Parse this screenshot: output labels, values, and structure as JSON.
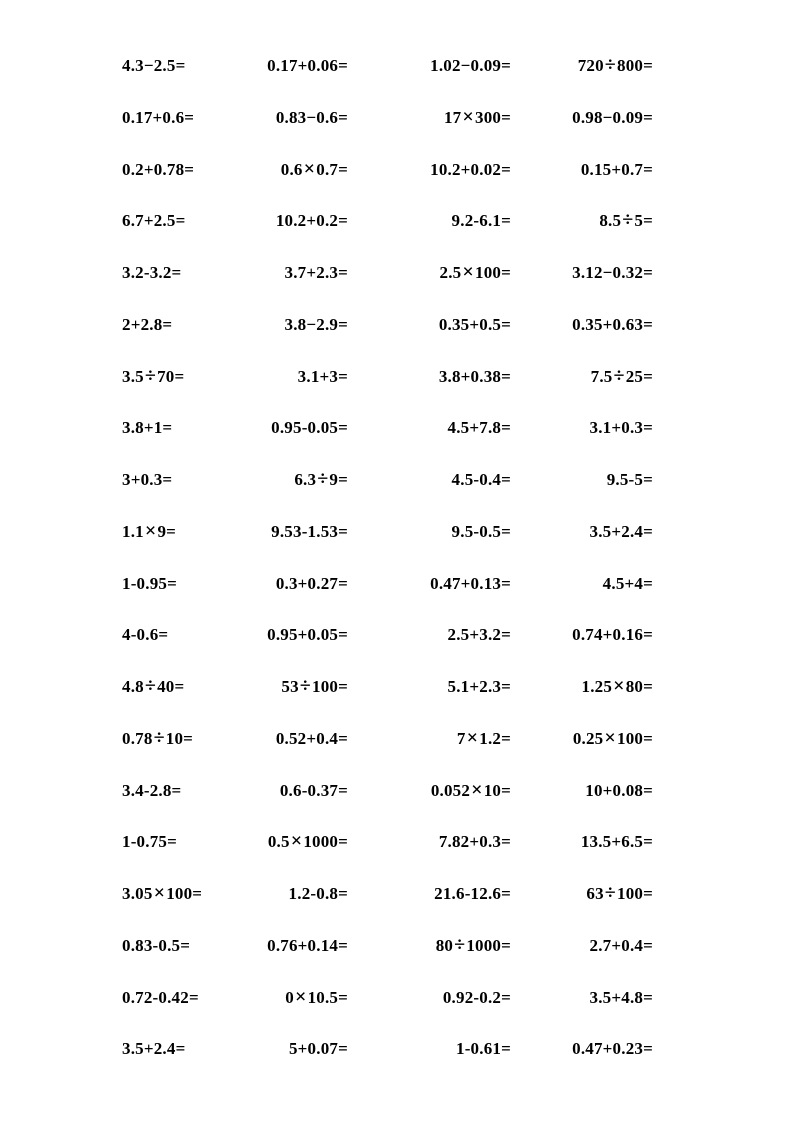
{
  "page": {
    "type": "math-worksheet",
    "background_color": "#ffffff",
    "text_color": "#000000",
    "columns": 4,
    "row_count": 20
  },
  "worksheet": {
    "rows": [
      [
        "4.3−2.5=",
        "0.17+0.06=",
        "1.02−0.09=",
        "720÷800="
      ],
      [
        "0.17+0.6=",
        "0.83−0.6=",
        "17×300=",
        "0.98−0.09="
      ],
      [
        "0.2+0.78=",
        "0.6×0.7=",
        "10.2+0.02=",
        "0.15+0.7="
      ],
      [
        "6.7+2.5=",
        "10.2+0.2=",
        "9.2-6.1=",
        "8.5÷5="
      ],
      [
        "3.2-3.2=",
        "3.7+2.3=",
        "2.5×100=",
        "3.12−0.32="
      ],
      [
        "2+2.8=",
        "3.8−2.9=",
        "0.35+0.5=",
        "0.35+0.63="
      ],
      [
        "3.5÷70=",
        "3.1+3=",
        "3.8+0.38=",
        "7.5÷25="
      ],
      [
        "3.8+1=",
        "0.95-0.05=",
        "4.5+7.8=",
        "3.1+0.3="
      ],
      [
        "3+0.3=",
        "6.3÷9=",
        "4.5-0.4=",
        "9.5-5="
      ],
      [
        "1.1×9=",
        "9.53-1.53=",
        "9.5-0.5=",
        "3.5+2.4="
      ],
      [
        "1-0.95=",
        "0.3+0.27=",
        "0.47+0.13=",
        "4.5+4="
      ],
      [
        "4-0.6=",
        "0.95+0.05=",
        "2.5+3.2=",
        "0.74+0.16="
      ],
      [
        "4.8÷40=",
        "53÷100=",
        "5.1+2.3=",
        "1.25×80="
      ],
      [
        "0.78÷10=",
        "0.52+0.4=",
        "7×1.2=",
        "0.25×100="
      ],
      [
        "3.4-2.8=",
        "0.6-0.37=",
        "0.052×10=",
        "10+0.08="
      ],
      [
        "1-0.75=",
        "0.5×1000=",
        "7.82+0.3=",
        "13.5+6.5="
      ],
      [
        "3.05×100=",
        "1.2-0.8=",
        "21.6-12.6=",
        "63÷100="
      ],
      [
        "0.83-0.5=",
        "0.76+0.14=",
        "80÷1000=",
        "2.7+0.4="
      ],
      [
        "0.72-0.42=",
        "0×10.5=",
        "0.92-0.2=",
        "3.5+4.8="
      ],
      [
        "3.5+2.4=",
        "5+0.07=",
        "1-0.61=",
        "0.47+0.23="
      ]
    ]
  }
}
